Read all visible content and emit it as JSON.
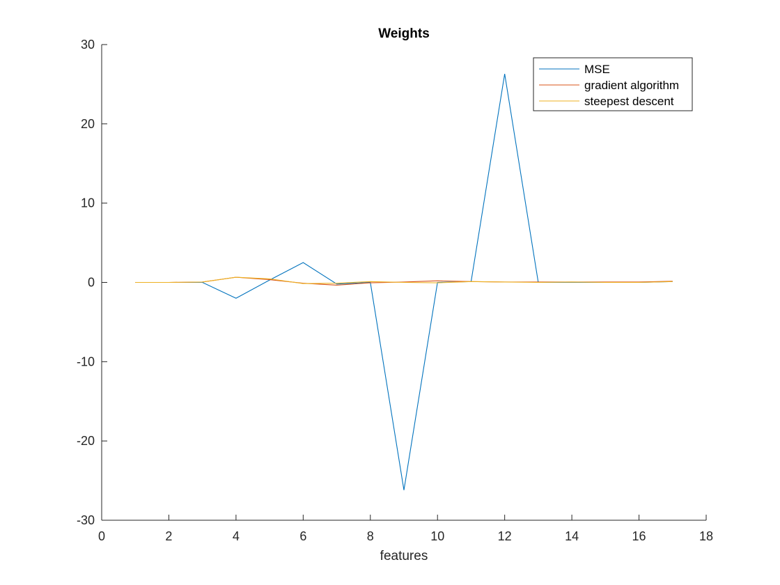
{
  "chart_data": {
    "type": "line",
    "title": "Weights",
    "xlabel": "features",
    "ylabel": "",
    "xlim": [
      0,
      18
    ],
    "ylim": [
      -30,
      30
    ],
    "xticks": [
      0,
      2,
      4,
      6,
      8,
      10,
      12,
      14,
      16,
      18
    ],
    "yticks": [
      -30,
      -20,
      -10,
      0,
      10,
      20,
      30
    ],
    "xtick_labels": [
      "0",
      "2",
      "4",
      "6",
      "8",
      "10",
      "12",
      "14",
      "16",
      "18"
    ],
    "ytick_labels": [
      "-30",
      "-20",
      "-10",
      "0",
      "10",
      "20",
      "30"
    ],
    "grid": false,
    "legend_position": "top-right",
    "x": [
      1,
      2,
      3,
      4,
      5,
      6,
      7,
      8,
      9,
      10,
      11,
      12,
      13,
      14,
      15,
      16,
      17
    ],
    "series": [
      {
        "name": "MSE",
        "color": "#0072BD",
        "values": [
          0,
          0,
          0,
          -2.0,
          0.3,
          2.5,
          -0.2,
          0,
          -26.2,
          0,
          0.1,
          26.3,
          0,
          0,
          0,
          0,
          0.1
        ]
      },
      {
        "name": "gradient algorithm",
        "color": "#D95319",
        "values": [
          0,
          0,
          0.05,
          0.65,
          0.35,
          -0.1,
          -0.35,
          -0.05,
          0.05,
          0.2,
          0.1,
          0.05,
          0.05,
          0.05,
          0.05,
          0.05,
          0.15
        ]
      },
      {
        "name": "steepest descent",
        "color": "#EDB120",
        "values": [
          0,
          0,
          0.05,
          0.65,
          0.45,
          -0.15,
          -0.1,
          0.1,
          0,
          -0.05,
          0.1,
          0.05,
          0,
          0.05,
          0,
          0,
          0.1
        ]
      }
    ]
  }
}
